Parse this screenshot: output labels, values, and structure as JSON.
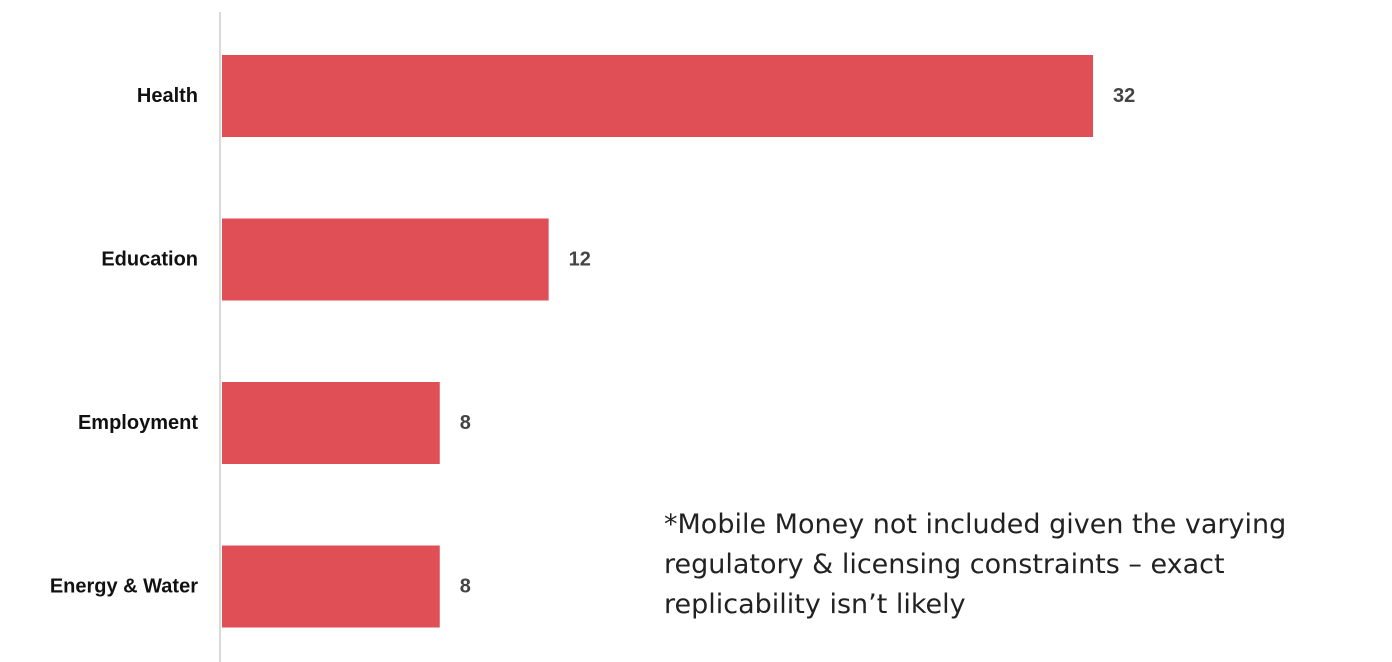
{
  "chart_data": {
    "type": "bar",
    "orientation": "horizontal",
    "categories": [
      "Health",
      "Education",
      "Employment",
      "Energy & Water"
    ],
    "values": [
      32,
      12,
      8,
      8
    ],
    "bar_color": "#e04f56",
    "axis_line_color": "#d9d9d9",
    "grid": false,
    "legend": "none"
  },
  "footnote": {
    "lines": [
      "*Mobile Money not included given the varying",
      "regulatory & licensing constraints – exact",
      "replicability isn’t likely"
    ]
  }
}
